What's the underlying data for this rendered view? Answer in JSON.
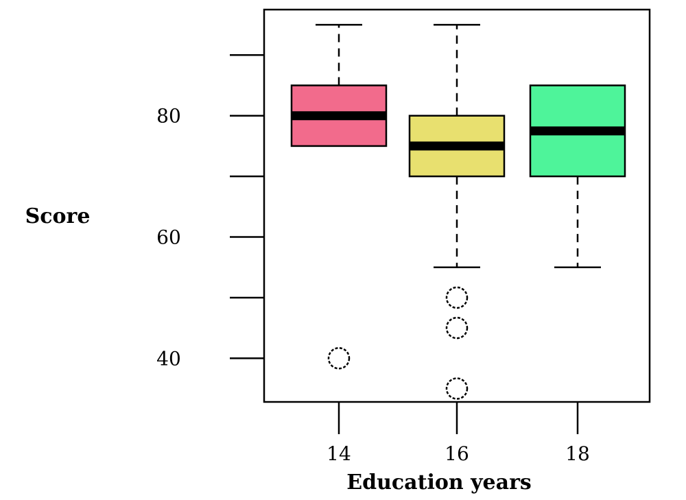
{
  "chart_data": {
    "type": "box",
    "xlabel": "Education years",
    "ylabel": "Score",
    "ylim": [
      32.8,
      97.5
    ],
    "yticks": [
      40,
      50,
      60,
      70,
      80,
      90
    ],
    "ytick_labels": [
      "40",
      "",
      "60",
      "",
      "80",
      ""
    ],
    "categories": [
      "14",
      "16",
      "18"
    ],
    "boxes": [
      {
        "category": "14",
        "color": "#f26b8c",
        "whisker_low": 75,
        "q1": 75,
        "median": 80,
        "q3": 85,
        "whisker_high": 95,
        "outliers": [
          40
        ]
      },
      {
        "category": "16",
        "color": "#e8e06f",
        "whisker_low": 55,
        "q1": 70,
        "median": 75,
        "q3": 80,
        "whisker_high": 95,
        "outliers": [
          50,
          45,
          35
        ]
      },
      {
        "category": "18",
        "color": "#4ef49a",
        "whisker_low": 55,
        "q1": 70,
        "median": 77.5,
        "q3": 85,
        "whisker_high": 85,
        "outliers": []
      }
    ]
  }
}
